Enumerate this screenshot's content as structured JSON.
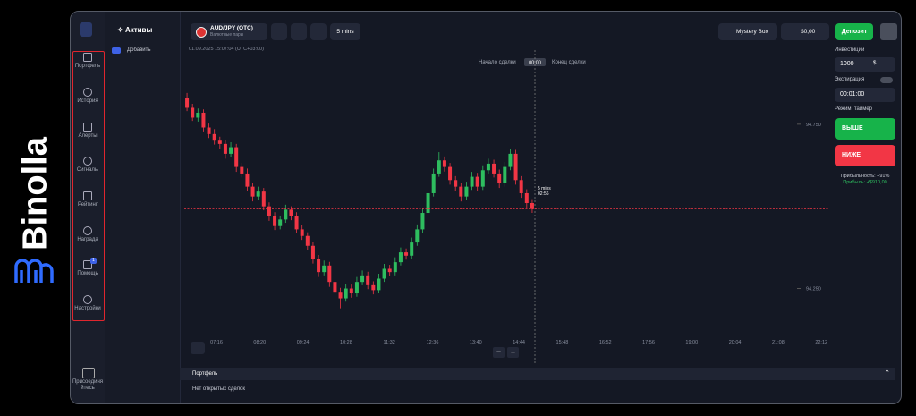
{
  "brand": {
    "name": "Binolla"
  },
  "sidebar": {
    "items": [
      "Портфель",
      "История",
      "Алерты",
      "Сигналы",
      "Рейтинг",
      "Награда",
      "Помощь",
      "Настройки"
    ],
    "help_badge": "1",
    "join": "Присоединяйтесь"
  },
  "assets": {
    "title": "Активы",
    "add": "Добавить"
  },
  "topbar": {
    "asset": "AUD/JPY (OTC)",
    "asset_type": "Валютные пары",
    "timeframe": "5 mins",
    "mystery_box": "Mystery Box",
    "balance": "$0,00",
    "deposit": "Депозит"
  },
  "trade_panel": {
    "investment_label": "Инвестиции",
    "investment": "1000",
    "currency": "$",
    "expiration_label": "Экспирация",
    "expiration": "00:01:00",
    "mode": "Режим: таймер",
    "up": "ВЫШЕ",
    "down": "НИЖЕ",
    "profitability": "Прибыльность: +91%",
    "profit": "Прибыль: +$910,00"
  },
  "portfolio": {
    "title": "Портфель",
    "empty": "Нет открытых сделок"
  },
  "chart_data": {
    "type": "candlestick",
    "timestamp": "01.09.2025 15:07:04 (UTC+03:00)",
    "trade_start": "Начало сделки",
    "trade_timer": "00:00",
    "trade_end": "Конец сделки",
    "candle_timeframe": "5 mins",
    "candle_timer": "02:56",
    "up_color": "#2ebd5f",
    "down_color": "#f23645",
    "ylim": [
      94.05,
      94.97
    ],
    "yticks": [
      {
        "value": 94.75,
        "label": "94.750"
      },
      {
        "value": 94.25,
        "label": "94.250"
      }
    ],
    "current_price": {
      "value": 94.492,
      "label": "94.492"
    },
    "xticks": [
      "07:16",
      "08:20",
      "09:24",
      "10:28",
      "11:32",
      "12:36",
      "13:40",
      "14:44",
      "15:48",
      "16:52",
      "17:56",
      "19:00",
      "20:04",
      "21:08",
      "22:12"
    ],
    "candles": [
      [
        94.83,
        94.845,
        94.79,
        94.8
      ],
      [
        94.8,
        94.812,
        94.76,
        94.77
      ],
      [
        94.77,
        94.798,
        94.758,
        94.785
      ],
      [
        94.785,
        94.795,
        94.728,
        94.74
      ],
      [
        94.74,
        94.752,
        94.708,
        94.72
      ],
      [
        94.72,
        94.735,
        94.688,
        94.7
      ],
      [
        94.7,
        94.712,
        94.676,
        94.69
      ],
      [
        94.69,
        94.701,
        94.645,
        94.66
      ],
      [
        94.66,
        94.695,
        94.65,
        94.68
      ],
      [
        94.68,
        94.69,
        94.605,
        94.62
      ],
      [
        94.62,
        94.632,
        94.588,
        94.6
      ],
      [
        94.6,
        94.615,
        94.548,
        94.56
      ],
      [
        94.56,
        94.572,
        94.515,
        94.53
      ],
      [
        94.53,
        94.56,
        94.52,
        94.545
      ],
      [
        94.545,
        94.556,
        94.488,
        94.5
      ],
      [
        94.5,
        94.512,
        94.456,
        94.47
      ],
      [
        94.47,
        94.482,
        94.428,
        94.44
      ],
      [
        94.44,
        94.472,
        94.43,
        94.46
      ],
      [
        94.46,
        94.505,
        94.45,
        94.49
      ],
      [
        94.49,
        94.5,
        94.458,
        94.47
      ],
      [
        94.47,
        94.482,
        94.418,
        94.43
      ],
      [
        94.43,
        94.442,
        94.398,
        94.41
      ],
      [
        94.41,
        94.421,
        94.366,
        94.38
      ],
      [
        94.38,
        94.392,
        94.326,
        94.34
      ],
      [
        94.34,
        94.352,
        94.285,
        94.3
      ],
      [
        94.3,
        94.335,
        94.29,
        94.32
      ],
      [
        94.32,
        94.331,
        94.255,
        94.27
      ],
      [
        94.27,
        94.282,
        94.226,
        94.24
      ],
      [
        94.24,
        94.252,
        94.19,
        94.22
      ],
      [
        94.22,
        94.265,
        94.21,
        94.25
      ],
      [
        94.25,
        94.262,
        94.222,
        94.235
      ],
      [
        94.235,
        94.285,
        94.225,
        94.27
      ],
      [
        94.27,
        94.305,
        94.26,
        94.29
      ],
      [
        94.29,
        94.301,
        94.248,
        94.26
      ],
      [
        94.26,
        94.272,
        94.232,
        94.245
      ],
      [
        94.245,
        94.295,
        94.235,
        94.28
      ],
      [
        94.28,
        94.325,
        94.27,
        94.31
      ],
      [
        94.31,
        94.322,
        94.288,
        94.3
      ],
      [
        94.3,
        94.345,
        94.29,
        94.33
      ],
      [
        94.33,
        94.375,
        94.32,
        94.36
      ],
      [
        94.36,
        94.372,
        94.338,
        94.35
      ],
      [
        94.35,
        94.405,
        94.34,
        94.39
      ],
      [
        94.39,
        94.445,
        94.38,
        94.43
      ],
      [
        94.43,
        94.495,
        94.42,
        94.48
      ],
      [
        94.48,
        94.555,
        94.47,
        94.54
      ],
      [
        94.54,
        94.615,
        94.53,
        94.6
      ],
      [
        94.6,
        94.665,
        94.59,
        94.64
      ],
      [
        94.64,
        94.652,
        94.606,
        94.62
      ],
      [
        94.62,
        94.632,
        94.566,
        94.58
      ],
      [
        94.58,
        94.592,
        94.546,
        94.56
      ],
      [
        94.56,
        94.572,
        94.515,
        94.53
      ],
      [
        94.53,
        94.575,
        94.52,
        94.56
      ],
      [
        94.56,
        94.605,
        94.55,
        94.59
      ],
      [
        94.59,
        94.602,
        94.548,
        94.56
      ],
      [
        94.56,
        94.625,
        94.55,
        94.61
      ],
      [
        94.61,
        94.645,
        94.6,
        94.63
      ],
      [
        94.63,
        94.642,
        94.588,
        94.6
      ],
      [
        94.6,
        94.612,
        94.556,
        94.57
      ],
      [
        94.57,
        94.635,
        94.56,
        94.62
      ],
      [
        94.62,
        94.675,
        94.61,
        94.66
      ],
      [
        94.66,
        94.672,
        94.566,
        94.58
      ],
      [
        94.58,
        94.592,
        94.526,
        94.54
      ],
      [
        94.54,
        94.552,
        94.496,
        94.51
      ],
      [
        94.51,
        94.522,
        94.48,
        94.492
      ]
    ]
  }
}
